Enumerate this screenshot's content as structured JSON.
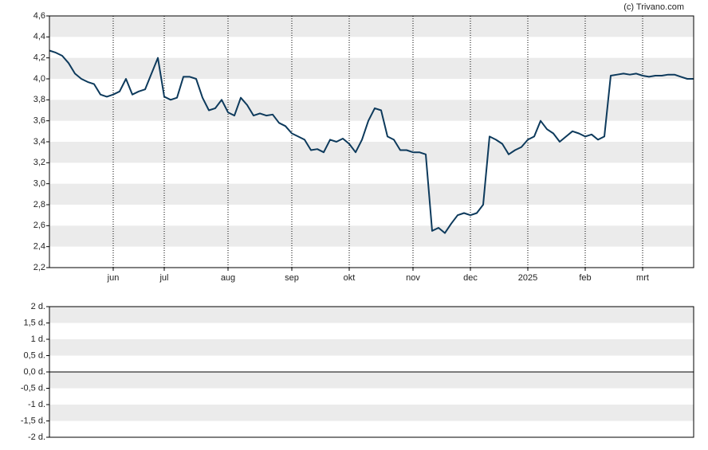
{
  "chart_data": [
    {
      "type": "line",
      "credit": "(c) Trivano.com",
      "categories": [
        null,
        null,
        null,
        null,
        null,
        null,
        null,
        null,
        null,
        null,
        "jun",
        null,
        null,
        null,
        null,
        null,
        null,
        null,
        "jul",
        null,
        null,
        null,
        null,
        null,
        null,
        null,
        null,
        null,
        "aug",
        null,
        null,
        null,
        null,
        null,
        null,
        null,
        null,
        null,
        "sep",
        null,
        null,
        null,
        null,
        null,
        null,
        null,
        null,
        "okt",
        null,
        null,
        null,
        null,
        null,
        null,
        null,
        null,
        null,
        "nov",
        null,
        null,
        null,
        null,
        null,
        null,
        null,
        null,
        "dec",
        null,
        null,
        null,
        null,
        null,
        null,
        null,
        null,
        "2025",
        null,
        null,
        null,
        null,
        null,
        null,
        null,
        null,
        "feb",
        null,
        null,
        null,
        null,
        null,
        null,
        null,
        null,
        "mrt",
        null,
        null,
        null,
        null,
        null,
        null,
        null,
        null
      ],
      "series": [
        {
          "color": "#0d3a5c",
          "values": [
            4.27,
            4.25,
            4.22,
            4.15,
            4.05,
            4.0,
            3.97,
            3.95,
            3.85,
            3.83,
            3.85,
            3.88,
            4.0,
            3.85,
            3.88,
            3.9,
            4.05,
            4.2,
            3.83,
            3.8,
            3.82,
            4.02,
            4.02,
            4.0,
            3.82,
            3.7,
            3.72,
            3.8,
            3.68,
            3.65,
            3.82,
            3.75,
            3.65,
            3.67,
            3.65,
            3.66,
            3.58,
            3.55,
            3.48,
            3.45,
            3.42,
            3.32,
            3.33,
            3.3,
            3.42,
            3.4,
            3.43,
            3.38,
            3.3,
            3.42,
            3.6,
            3.72,
            3.7,
            3.45,
            3.42,
            3.32,
            3.32,
            3.3,
            3.3,
            3.28,
            2.55,
            2.58,
            2.53,
            2.62,
            2.7,
            2.72,
            2.7,
            2.72,
            2.8,
            3.45,
            3.42,
            3.38,
            3.28,
            3.32,
            3.35,
            3.42,
            3.45,
            3.6,
            3.52,
            3.48,
            3.4,
            3.45,
            3.5,
            3.48,
            3.45,
            3.47,
            3.42,
            3.45,
            4.03,
            4.04,
            4.05,
            4.04,
            4.05,
            4.03,
            4.02,
            4.03,
            4.03,
            4.04,
            4.04,
            4.02,
            4.0,
            4.0
          ]
        }
      ],
      "ylim": [
        2.2,
        4.6
      ],
      "yticks": [
        {
          "value": 2.2,
          "label": "2,2"
        },
        {
          "value": 2.4,
          "label": "2,4"
        },
        {
          "value": 2.6,
          "label": "2,6"
        },
        {
          "value": 2.8,
          "label": "2,8"
        },
        {
          "value": 3.0,
          "label": "3,0"
        },
        {
          "value": 3.2,
          "label": "3,2"
        },
        {
          "value": 3.4,
          "label": "3,4"
        },
        {
          "value": 3.6,
          "label": "3,6"
        },
        {
          "value": 3.8,
          "label": "3,8"
        },
        {
          "value": 4.0,
          "label": "4,0"
        },
        {
          "value": 4.2,
          "label": "4,2"
        },
        {
          "value": 4.4,
          "label": "4,4"
        },
        {
          "value": 4.6,
          "label": "4,6"
        }
      ],
      "grid": true
    },
    {
      "type": "bar",
      "ylim": [
        -2,
        2
      ],
      "yticks": [
        {
          "value": -2,
          "label": "-2 d."
        },
        {
          "value": -1.5,
          "label": "-1,5 d."
        },
        {
          "value": -1,
          "label": "-1 d."
        },
        {
          "value": -0.5,
          "label": "-0,5 d."
        },
        {
          "value": 0,
          "label": "0,0 d."
        },
        {
          "value": 0.5,
          "label": "0,5 d."
        },
        {
          "value": 1,
          "label": "1 d."
        },
        {
          "value": 1.5,
          "label": "1,5 d."
        },
        {
          "value": 2,
          "label": "2 d."
        }
      ],
      "grid": true
    }
  ]
}
